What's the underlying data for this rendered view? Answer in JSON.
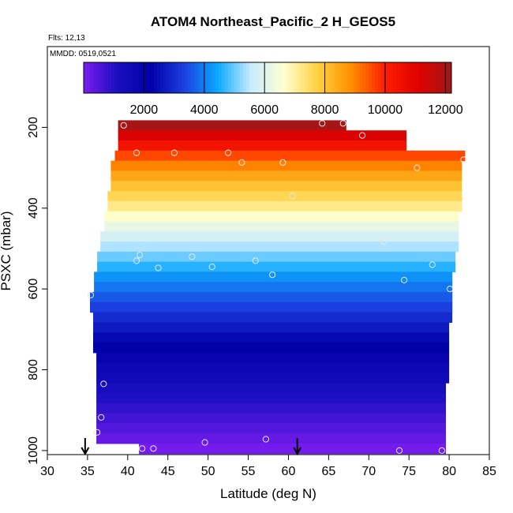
{
  "chart_data": {
    "type": "heatmap",
    "title": "ATOM4 Northeast_Pacific_2 H_GEOS5",
    "annotations": {
      "flights": "Flts: 12,13",
      "dates": "MMDD: 0519,0521"
    },
    "xlabel": "Latitude (deg N)",
    "ylabel": "PSXC (mbar)",
    "xlim": [
      30,
      85
    ],
    "ylim": [
      1010,
      0
    ],
    "xticks": [
      "30",
      "35",
      "40",
      "45",
      "50",
      "55",
      "60",
      "65",
      "70",
      "75",
      "80",
      "85"
    ],
    "yticks": [
      "200",
      "400",
      "600",
      "800",
      "1000"
    ],
    "colorbar": {
      "range": [
        0,
        12200
      ],
      "ticks": [
        "2000",
        "4000",
        "6000",
        "8000",
        "10000",
        "12000"
      ],
      "stops": [
        "#7b1cf0",
        "#1a0fc0",
        "#0000a6",
        "#1d3fe0",
        "#0aa8ff",
        "#c8ecff",
        "#ffffd0",
        "#ffd040",
        "#ff9000",
        "#ff2000",
        "#e00000",
        "#a01818"
      ]
    },
    "bands": [
      {
        "p": 195,
        "xmin": 38.8,
        "xmax": 67.2,
        "value": 12100
      },
      {
        "p": 220,
        "xmin": 38.8,
        "xmax": 74.7,
        "value": 11200
      },
      {
        "p": 245,
        "xmin": 38.8,
        "xmax": 74.7,
        "value": 10400
      },
      {
        "p": 270,
        "xmin": 38.4,
        "xmax": 82.0,
        "value": 9600
      },
      {
        "p": 295,
        "xmin": 37.9,
        "xmax": 81.6,
        "value": 9000
      },
      {
        "p": 320,
        "xmin": 37.9,
        "xmax": 81.6,
        "value": 8500
      },
      {
        "p": 345,
        "xmin": 37.9,
        "xmax": 81.6,
        "value": 8000
      },
      {
        "p": 370,
        "xmin": 37.5,
        "xmax": 81.6,
        "value": 7600
      },
      {
        "p": 395,
        "xmin": 37.5,
        "xmax": 81.6,
        "value": 7200
      },
      {
        "p": 420,
        "xmin": 37.1,
        "xmax": 81.2,
        "value": 6700
      },
      {
        "p": 445,
        "xmin": 37.1,
        "xmax": 81.2,
        "value": 6200
      },
      {
        "p": 470,
        "xmin": 36.6,
        "xmax": 81.2,
        "value": 5800
      },
      {
        "p": 495,
        "xmin": 36.6,
        "xmax": 81.2,
        "value": 5400
      },
      {
        "p": 520,
        "xmin": 36.2,
        "xmax": 80.8,
        "value": 5000
      },
      {
        "p": 545,
        "xmin": 36.2,
        "xmax": 80.8,
        "value": 4600
      },
      {
        "p": 570,
        "xmin": 35.8,
        "xmax": 80.4,
        "value": 4200
      },
      {
        "p": 595,
        "xmin": 35.8,
        "xmax": 80.4,
        "value": 3900
      },
      {
        "p": 620,
        "xmin": 35.3,
        "xmax": 80.4,
        "value": 3600
      },
      {
        "p": 645,
        "xmin": 35.3,
        "xmax": 80.4,
        "value": 3300
      },
      {
        "p": 670,
        "xmin": 35.7,
        "xmax": 80.4,
        "value": 3000
      },
      {
        "p": 695,
        "xmin": 35.7,
        "xmax": 80.0,
        "value": 2700
      },
      {
        "p": 720,
        "xmin": 35.7,
        "xmax": 80.0,
        "value": 2400
      },
      {
        "p": 745,
        "xmin": 35.7,
        "xmax": 80.0,
        "value": 2150
      },
      {
        "p": 770,
        "xmin": 36.1,
        "xmax": 80.0,
        "value": 1900
      },
      {
        "p": 795,
        "xmin": 36.1,
        "xmax": 80.0,
        "value": 1650
      },
      {
        "p": 820,
        "xmin": 36.1,
        "xmax": 80.0,
        "value": 1450
      },
      {
        "p": 845,
        "xmin": 36.1,
        "xmax": 79.6,
        "value": 1250
      },
      {
        "p": 870,
        "xmin": 36.1,
        "xmax": 79.6,
        "value": 1050
      },
      {
        "p": 895,
        "xmin": 36.1,
        "xmax": 79.6,
        "value": 850
      },
      {
        "p": 920,
        "xmin": 36.1,
        "xmax": 79.6,
        "value": 650
      },
      {
        "p": 945,
        "xmin": 36.1,
        "xmax": 79.6,
        "value": 450
      },
      {
        "p": 970,
        "xmin": 36.1,
        "xmax": 79.6,
        "value": 250
      },
      {
        "p": 995,
        "xmin": 41.4,
        "xmax": 79.6,
        "value": 80
      }
    ],
    "points": [
      {
        "x": 39.5,
        "p": 195
      },
      {
        "x": 64.2,
        "p": 190
      },
      {
        "x": 66.8,
        "p": 190
      },
      {
        "x": 69.2,
        "p": 220
      },
      {
        "x": 41.1,
        "p": 263
      },
      {
        "x": 45.8,
        "p": 263
      },
      {
        "x": 52.5,
        "p": 263
      },
      {
        "x": 54.2,
        "p": 287
      },
      {
        "x": 59.3,
        "p": 287
      },
      {
        "x": 76.0,
        "p": 300
      },
      {
        "x": 81.8,
        "p": 280
      },
      {
        "x": 60.5,
        "p": 370
      },
      {
        "x": 71.8,
        "p": 482
      },
      {
        "x": 41.5,
        "p": 516
      },
      {
        "x": 41.1,
        "p": 530
      },
      {
        "x": 43.8,
        "p": 548
      },
      {
        "x": 48.0,
        "p": 520
      },
      {
        "x": 50.5,
        "p": 545
      },
      {
        "x": 55.9,
        "p": 530
      },
      {
        "x": 58.0,
        "p": 565
      },
      {
        "x": 74.4,
        "p": 578
      },
      {
        "x": 77.9,
        "p": 540
      },
      {
        "x": 80.1,
        "p": 600
      },
      {
        "x": 35.4,
        "p": 615
      },
      {
        "x": 37.0,
        "p": 835
      },
      {
        "x": 36.7,
        "p": 918
      },
      {
        "x": 36.2,
        "p": 955
      },
      {
        "x": 49.6,
        "p": 980
      },
      {
        "x": 57.2,
        "p": 972
      },
      {
        "x": 41.8,
        "p": 995
      },
      {
        "x": 43.2,
        "p": 995
      },
      {
        "x": 73.8,
        "p": 1000
      },
      {
        "x": 79.1,
        "p": 1000
      }
    ],
    "arrows": [
      34.7,
      61.1
    ]
  }
}
